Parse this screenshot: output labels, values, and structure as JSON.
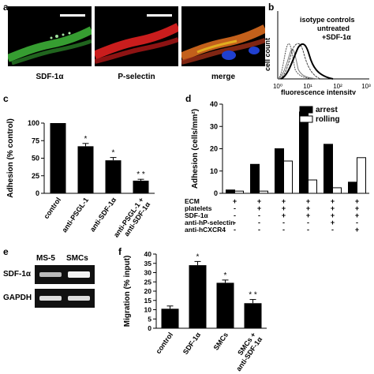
{
  "panels": {
    "a": {
      "label": "a",
      "captions": [
        "SDF-1α",
        "P-selectin",
        "merge"
      ]
    },
    "b": {
      "label": "b",
      "ylabel": "cell count",
      "xlabel": "fluorescence intensity",
      "legend": [
        "isotype controls",
        "untreated",
        "+SDF-1α"
      ],
      "x_ticks": [
        "10⁰",
        "10¹",
        "10²",
        "10³"
      ]
    },
    "c": {
      "label": "c"
    },
    "d": {
      "label": "d",
      "row_labels": [
        "ECM",
        "platelets",
        "SDF-1α",
        "anti-hP-selectin",
        "anti-hCXCR4"
      ],
      "row_values": [
        [
          "+",
          "+",
          "+",
          "+",
          "+",
          "+"
        ],
        [
          "-",
          "+",
          "+",
          "+",
          "+",
          "+"
        ],
        [
          "-",
          "-",
          "+",
          "+",
          "+",
          "+"
        ],
        [
          "-",
          "-",
          "-",
          "-",
          "+",
          "-"
        ],
        [
          "-",
          "-",
          "-",
          "-",
          "-",
          "+"
        ]
      ]
    },
    "e": {
      "label": "e",
      "columns": [
        "MS-5",
        "SMCs"
      ],
      "rows": [
        "SDF-1α",
        "GAPDH"
      ]
    },
    "f": {
      "label": "f"
    }
  },
  "chart_data": [
    {
      "panel": "c",
      "type": "bar",
      "ylabel": "Adhesion (% control)",
      "ylim": [
        0,
        100
      ],
      "yticks": [
        0,
        25,
        50,
        75,
        100
      ],
      "categories": [
        "control",
        "anti-PSGL-1",
        "anti-SDF-1α",
        "anti-PSGL-1 + anti-SDF-1α"
      ],
      "values": [
        100,
        67,
        47,
        18
      ],
      "errors": [
        0,
        4,
        4,
        2
      ],
      "significance": [
        "",
        "*",
        "*",
        "* *"
      ]
    },
    {
      "panel": "d",
      "type": "bar",
      "ylabel": "Adhesion (cells/mm²)",
      "ylim": [
        0,
        40
      ],
      "yticks": [
        0,
        10,
        20,
        30,
        40
      ],
      "categories": [
        "1",
        "2",
        "3",
        "4",
        "5",
        "6"
      ],
      "series": [
        {
          "name": "arrest",
          "color": "#000000",
          "values": [
            1.5,
            13,
            20,
            36.5,
            22,
            5
          ]
        },
        {
          "name": "rolling",
          "color": "#ffffff",
          "values": [
            1,
            1,
            14.5,
            6,
            2.5,
            16
          ]
        }
      ],
      "legend_position": "top-right"
    },
    {
      "panel": "f",
      "type": "bar",
      "ylabel": "Migration (% input)",
      "ylim": [
        0,
        40
      ],
      "yticks": [
        0,
        5,
        10,
        15,
        20,
        25,
        30,
        35,
        40
      ],
      "categories": [
        "control",
        "SDF-1α",
        "SMCs",
        "SMCs + anti-SDF-1α"
      ],
      "values": [
        10.5,
        34,
        24.5,
        13.5
      ],
      "errors": [
        1.5,
        2,
        1.5,
        2
      ],
      "significance": [
        "",
        "*",
        "*",
        "* *"
      ]
    }
  ]
}
